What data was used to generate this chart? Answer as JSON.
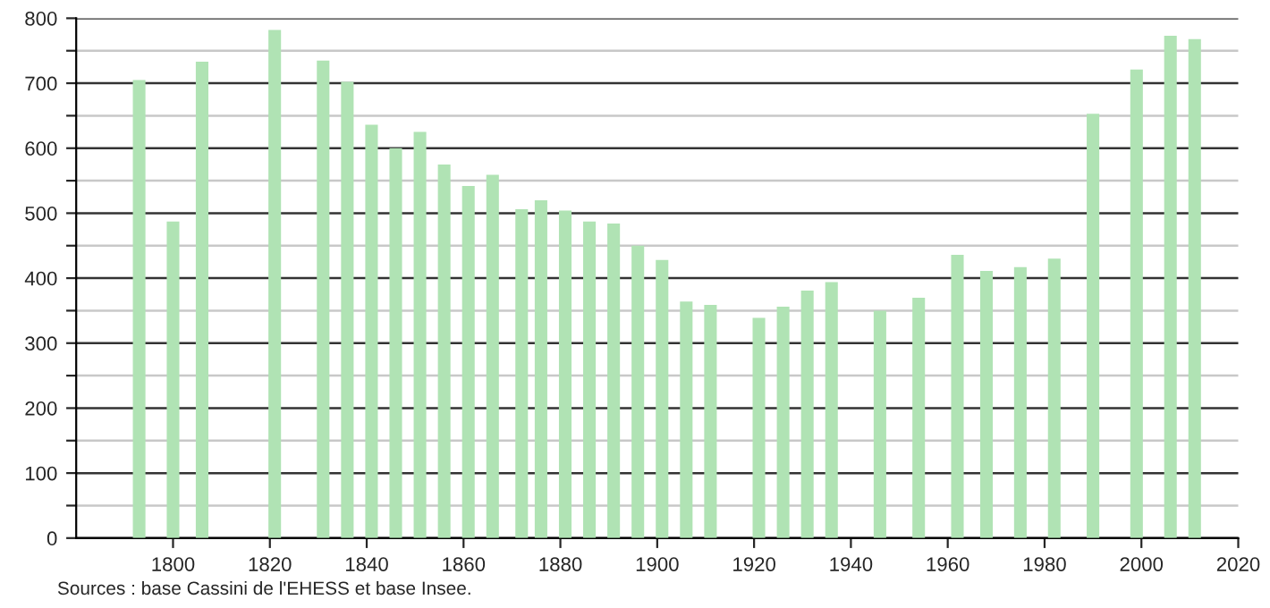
{
  "chart_data": {
    "type": "bar",
    "x": [
      1793,
      1800,
      1806,
      1821,
      1831,
      1836,
      1841,
      1846,
      1851,
      1856,
      1861,
      1866,
      1872,
      1876,
      1881,
      1886,
      1891,
      1896,
      1901,
      1906,
      1911,
      1921,
      1926,
      1931,
      1936,
      1946,
      1954,
      1962,
      1968,
      1975,
      1982,
      1990,
      1999,
      2006,
      2011
    ],
    "values": [
      705,
      487,
      733,
      782,
      735,
      702,
      636,
      600,
      625,
      575,
      542,
      559,
      506,
      520,
      504,
      487,
      484,
      450,
      428,
      364,
      359,
      339,
      356,
      381,
      394,
      350,
      370,
      436,
      411,
      417,
      430,
      653,
      721,
      773,
      768
    ],
    "color": "#b0e3b4",
    "xlim": [
      1780,
      2020
    ],
    "xticks": [
      1800,
      1820,
      1840,
      1860,
      1880,
      1900,
      1920,
      1940,
      1960,
      1980,
      2000,
      2020
    ],
    "ylim": [
      0,
      800
    ],
    "yticks": [
      0,
      {
        "value": 50,
        "label": null
      },
      100,
      {
        "value": 150,
        "label": null
      },
      200,
      {
        "value": 250,
        "label": null
      },
      300,
      {
        "value": 350,
        "label": null
      },
      400,
      {
        "value": 450,
        "label": null
      },
      500,
      {
        "value": 550,
        "label": null
      },
      600,
      {
        "value": 650,
        "label": null
      },
      700,
      {
        "value": 750,
        "label": null
      },
      800
    ],
    "grid": "y",
    "annotations": [
      "Sources : base Cassini de l'EHESS et base Insee."
    ]
  }
}
